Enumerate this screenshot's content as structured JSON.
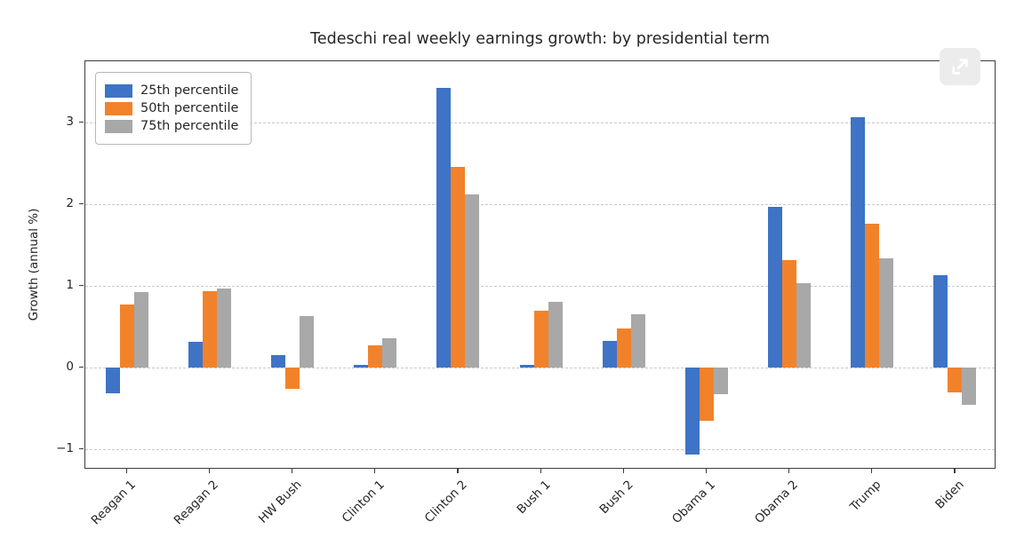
{
  "chart_data": {
    "type": "bar",
    "title": "Tedeschi real weekly earnings growth: by presidential term",
    "xlabel": "",
    "ylabel": "Growth (annual %)",
    "categories": [
      "Reagan 1",
      "Reagan 2",
      "HW Bush",
      "Clinton 1",
      "Clinton 2",
      "Bush 1",
      "Bush 2",
      "Obama 1",
      "Obama 2",
      "Trump",
      "Biden"
    ],
    "series": [
      {
        "name": "25th percentile",
        "color": "#3e73c6",
        "values": [
          -0.32,
          0.31,
          0.15,
          0.03,
          3.42,
          0.03,
          0.33,
          -1.07,
          1.97,
          3.07,
          1.13
        ]
      },
      {
        "name": "50th percentile",
        "color": "#f2822a",
        "values": [
          0.77,
          0.93,
          -0.26,
          0.27,
          2.46,
          0.7,
          0.48,
          -0.65,
          1.32,
          1.76,
          -0.3
        ]
      },
      {
        "name": "75th percentile",
        "color": "#a8a8a8",
        "values": [
          0.92,
          0.97,
          0.63,
          0.36,
          2.12,
          0.8,
          0.65,
          -0.33,
          1.03,
          1.34,
          -0.46
        ]
      }
    ],
    "yticks": [
      -1,
      0,
      1,
      2,
      3
    ],
    "ylim": [
      -1.25,
      3.75
    ],
    "grid": true,
    "legend_position": "upper left"
  },
  "overlay": {
    "expand_icon": "expand-arrow"
  }
}
